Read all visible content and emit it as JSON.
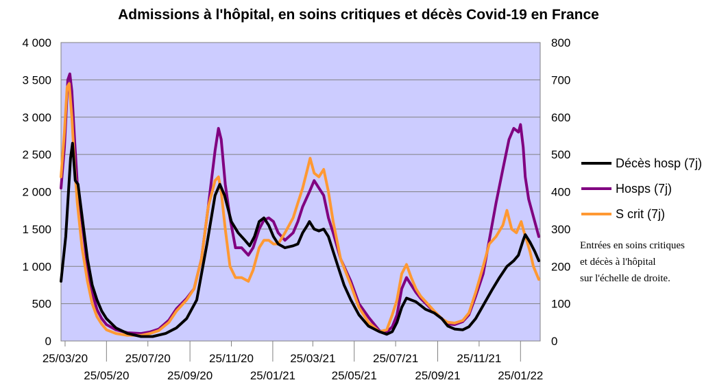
{
  "chart_data": {
    "type": "line",
    "title": "Admissions à l'hôpital, en soins critiques et décès Covid-19 en France",
    "colors": {
      "plot_bg": "#ccccff",
      "deces": "#000000",
      "hosps": "#800080",
      "scrit": "#ff9933"
    },
    "x_ticks_upper": [
      "25/03/20",
      "25/07/20",
      "25/11/20",
      "25/03/21",
      "25/07/21",
      "25/11/21"
    ],
    "x_ticks_lower": [
      "25/05/20",
      "25/09/20",
      "25/01/21",
      "25/05/21",
      "25/09/21",
      "25/01/22"
    ],
    "x_range": [
      "2020-03-19",
      "2022-02-23"
    ],
    "y_left": {
      "ticks": [
        "0",
        "500",
        "1 000",
        "1 500",
        "2 000",
        "2 500",
        "3 000",
        "3 500",
        "4 000"
      ],
      "range": [
        0,
        4000
      ]
    },
    "y_right": {
      "ticks": [
        "0",
        "100",
        "200",
        "300",
        "400",
        "500",
        "600",
        "700",
        "800"
      ],
      "range": [
        0,
        800
      ]
    },
    "grid": "horizontal",
    "legend_position": "right",
    "note_lines": [
      "Entrées en soins critiques",
      "et décès à l'hôpital",
      "sur l'échelle de droite."
    ],
    "series": [
      {
        "name": "Décès hosp (7j)",
        "key": "deces",
        "axis": "right",
        "points": [
          [
            "2020-03-19",
            160
          ],
          [
            "2020-03-26",
            280
          ],
          [
            "2020-04-02",
            490
          ],
          [
            "2020-04-05",
            530
          ],
          [
            "2020-04-09",
            430
          ],
          [
            "2020-04-13",
            420
          ],
          [
            "2020-04-20",
            320
          ],
          [
            "2020-04-27",
            220
          ],
          [
            "2020-05-04",
            150
          ],
          [
            "2020-05-11",
            110
          ],
          [
            "2020-05-18",
            80
          ],
          [
            "2020-05-25",
            60
          ],
          [
            "2020-06-08",
            35
          ],
          [
            "2020-06-25",
            20
          ],
          [
            "2020-07-15",
            12
          ],
          [
            "2020-08-01",
            12
          ],
          [
            "2020-08-20",
            20
          ],
          [
            "2020-09-05",
            35
          ],
          [
            "2020-09-20",
            60
          ],
          [
            "2020-10-05",
            110
          ],
          [
            "2020-10-20",
            260
          ],
          [
            "2020-11-01",
            390
          ],
          [
            "2020-11-08",
            420
          ],
          [
            "2020-11-15",
            390
          ],
          [
            "2020-11-25",
            320
          ],
          [
            "2020-12-05",
            290
          ],
          [
            "2020-12-15",
            270
          ],
          [
            "2020-12-22",
            255
          ],
          [
            "2020-12-29",
            280
          ],
          [
            "2021-01-05",
            320
          ],
          [
            "2021-01-12",
            330
          ],
          [
            "2021-01-19",
            310
          ],
          [
            "2021-01-26",
            280
          ],
          [
            "2021-02-02",
            260
          ],
          [
            "2021-02-12",
            250
          ],
          [
            "2021-02-24",
            255
          ],
          [
            "2021-03-03",
            260
          ],
          [
            "2021-03-10",
            290
          ],
          [
            "2021-03-17",
            310
          ],
          [
            "2021-03-20",
            320
          ],
          [
            "2021-03-27",
            300
          ],
          [
            "2021-04-03",
            295
          ],
          [
            "2021-04-10",
            300
          ],
          [
            "2021-04-17",
            280
          ],
          [
            "2021-04-24",
            240
          ],
          [
            "2021-05-01",
            200
          ],
          [
            "2021-05-10",
            150
          ],
          [
            "2021-05-20",
            110
          ],
          [
            "2021-06-01",
            70
          ],
          [
            "2021-06-15",
            40
          ],
          [
            "2021-07-01",
            25
          ],
          [
            "2021-07-12",
            18
          ],
          [
            "2021-07-20",
            25
          ],
          [
            "2021-07-27",
            50
          ],
          [
            "2021-08-03",
            90
          ],
          [
            "2021-08-10",
            115
          ],
          [
            "2021-08-17",
            110
          ],
          [
            "2021-08-24",
            105
          ],
          [
            "2021-08-31",
            95
          ],
          [
            "2021-09-07",
            85
          ],
          [
            "2021-09-20",
            75
          ],
          [
            "2021-10-01",
            60
          ],
          [
            "2021-10-10",
            40
          ],
          [
            "2021-10-20",
            32
          ],
          [
            "2021-11-01",
            30
          ],
          [
            "2021-11-10",
            38
          ],
          [
            "2021-11-20",
            60
          ],
          [
            "2021-12-01",
            95
          ],
          [
            "2021-12-15",
            140
          ],
          [
            "2021-12-25",
            170
          ],
          [
            "2022-01-05",
            200
          ],
          [
            "2022-01-15",
            215
          ],
          [
            "2022-01-22",
            230
          ],
          [
            "2022-01-29",
            270
          ],
          [
            "2022-02-01",
            285
          ],
          [
            "2022-02-08",
            265
          ],
          [
            "2022-02-15",
            240
          ],
          [
            "2022-02-21",
            215
          ]
        ]
      },
      {
        "name": "Hosps (7j)",
        "key": "hosps",
        "axis": "left",
        "points": [
          [
            "2020-03-19",
            2050
          ],
          [
            "2020-03-24",
            2600
          ],
          [
            "2020-03-29",
            3500
          ],
          [
            "2020-04-01",
            3580
          ],
          [
            "2020-04-04",
            3350
          ],
          [
            "2020-04-08",
            2700
          ],
          [
            "2020-04-12",
            2100
          ],
          [
            "2020-04-19",
            1600
          ],
          [
            "2020-04-27",
            1000
          ],
          [
            "2020-05-04",
            650
          ],
          [
            "2020-05-11",
            420
          ],
          [
            "2020-05-18",
            300
          ],
          [
            "2020-05-25",
            220
          ],
          [
            "2020-06-08",
            150
          ],
          [
            "2020-06-25",
            110
          ],
          [
            "2020-07-15",
            100
          ],
          [
            "2020-07-28",
            120
          ],
          [
            "2020-08-10",
            160
          ],
          [
            "2020-08-25",
            280
          ],
          [
            "2020-09-05",
            430
          ],
          [
            "2020-09-20",
            570
          ],
          [
            "2020-10-01",
            700
          ],
          [
            "2020-10-12",
            1100
          ],
          [
            "2020-10-22",
            1800
          ],
          [
            "2020-11-01",
            2550
          ],
          [
            "2020-11-06",
            2850
          ],
          [
            "2020-11-10",
            2700
          ],
          [
            "2020-11-16",
            2100
          ],
          [
            "2020-11-23",
            1650
          ],
          [
            "2020-12-01",
            1250
          ],
          [
            "2020-12-10",
            1250
          ],
          [
            "2020-12-20",
            1150
          ],
          [
            "2020-12-27",
            1250
          ],
          [
            "2021-01-05",
            1500
          ],
          [
            "2021-01-12",
            1620
          ],
          [
            "2021-01-19",
            1650
          ],
          [
            "2021-01-26",
            1600
          ],
          [
            "2021-02-02",
            1450
          ],
          [
            "2021-02-12",
            1350
          ],
          [
            "2021-02-24",
            1450
          ],
          [
            "2021-03-03",
            1600
          ],
          [
            "2021-03-10",
            1800
          ],
          [
            "2021-03-20",
            2000
          ],
          [
            "2021-03-27",
            2150
          ],
          [
            "2021-04-03",
            2050
          ],
          [
            "2021-04-10",
            1950
          ],
          [
            "2021-04-17",
            1650
          ],
          [
            "2021-04-24",
            1450
          ],
          [
            "2021-05-05",
            1100
          ],
          [
            "2021-05-20",
            800
          ],
          [
            "2021-06-01",
            500
          ],
          [
            "2021-06-15",
            320
          ],
          [
            "2021-07-01",
            140
          ],
          [
            "2021-07-12",
            120
          ],
          [
            "2021-07-20",
            190
          ],
          [
            "2021-07-27",
            350
          ],
          [
            "2021-08-03",
            700
          ],
          [
            "2021-08-10",
            850
          ],
          [
            "2021-08-17",
            750
          ],
          [
            "2021-08-24",
            650
          ],
          [
            "2021-08-31",
            570
          ],
          [
            "2021-09-10",
            480
          ],
          [
            "2021-09-20",
            390
          ],
          [
            "2021-10-01",
            300
          ],
          [
            "2021-10-10",
            230
          ],
          [
            "2021-10-20",
            220
          ],
          [
            "2021-11-01",
            260
          ],
          [
            "2021-11-10",
            350
          ],
          [
            "2021-11-20",
            600
          ],
          [
            "2021-12-01",
            900
          ],
          [
            "2021-12-10",
            1350
          ],
          [
            "2021-12-20",
            1850
          ],
          [
            "2021-12-30",
            2300
          ],
          [
            "2022-01-08",
            2700
          ],
          [
            "2022-01-15",
            2850
          ],
          [
            "2022-01-22",
            2800
          ],
          [
            "2022-01-25",
            2900
          ],
          [
            "2022-01-29",
            2600
          ],
          [
            "2022-02-01",
            2200
          ],
          [
            "2022-02-06",
            1900
          ],
          [
            "2022-02-12",
            1700
          ],
          [
            "2022-02-21",
            1400
          ]
        ]
      },
      {
        "name": "S crit (7j)",
        "key": "scrit",
        "axis": "right",
        "points": [
          [
            "2020-03-19",
            440
          ],
          [
            "2020-03-24",
            560
          ],
          [
            "2020-03-28",
            680
          ],
          [
            "2020-03-31",
            690
          ],
          [
            "2020-04-04",
            600
          ],
          [
            "2020-04-08",
            470
          ],
          [
            "2020-04-12",
            370
          ],
          [
            "2020-04-19",
            250
          ],
          [
            "2020-04-27",
            160
          ],
          [
            "2020-05-04",
            100
          ],
          [
            "2020-05-11",
            65
          ],
          [
            "2020-05-18",
            45
          ],
          [
            "2020-05-25",
            30
          ],
          [
            "2020-06-08",
            20
          ],
          [
            "2020-06-25",
            15
          ],
          [
            "2020-07-15",
            15
          ],
          [
            "2020-07-28",
            20
          ],
          [
            "2020-08-10",
            28
          ],
          [
            "2020-08-25",
            50
          ],
          [
            "2020-09-05",
            80
          ],
          [
            "2020-09-20",
            110
          ],
          [
            "2020-10-01",
            140
          ],
          [
            "2020-10-12",
            220
          ],
          [
            "2020-10-22",
            360
          ],
          [
            "2020-11-01",
            430
          ],
          [
            "2020-11-06",
            440
          ],
          [
            "2020-11-10",
            400
          ],
          [
            "2020-11-16",
            300
          ],
          [
            "2020-11-23",
            200
          ],
          [
            "2020-12-01",
            170
          ],
          [
            "2020-12-10",
            170
          ],
          [
            "2020-12-20",
            160
          ],
          [
            "2020-12-27",
            190
          ],
          [
            "2021-01-05",
            250
          ],
          [
            "2021-01-12",
            270
          ],
          [
            "2021-01-19",
            270
          ],
          [
            "2021-01-26",
            260
          ],
          [
            "2021-02-02",
            260
          ],
          [
            "2021-02-12",
            290
          ],
          [
            "2021-02-24",
            330
          ],
          [
            "2021-03-03",
            370
          ],
          [
            "2021-03-10",
            410
          ],
          [
            "2021-03-17",
            460
          ],
          [
            "2021-03-21",
            490
          ],
          [
            "2021-03-27",
            450
          ],
          [
            "2021-04-03",
            440
          ],
          [
            "2021-04-10",
            460
          ],
          [
            "2021-04-17",
            400
          ],
          [
            "2021-04-24",
            320
          ],
          [
            "2021-05-05",
            220
          ],
          [
            "2021-05-20",
            150
          ],
          [
            "2021-06-01",
            90
          ],
          [
            "2021-06-15",
            50
          ],
          [
            "2021-07-01",
            25
          ],
          [
            "2021-07-12",
            30
          ],
          [
            "2021-07-20",
            70
          ],
          [
            "2021-07-27",
            110
          ],
          [
            "2021-08-03",
            180
          ],
          [
            "2021-08-10",
            205
          ],
          [
            "2021-08-17",
            170
          ],
          [
            "2021-08-24",
            140
          ],
          [
            "2021-08-31",
            120
          ],
          [
            "2021-09-10",
            100
          ],
          [
            "2021-09-20",
            80
          ],
          [
            "2021-10-01",
            60
          ],
          [
            "2021-10-10",
            50
          ],
          [
            "2021-10-20",
            48
          ],
          [
            "2021-11-01",
            55
          ],
          [
            "2021-11-10",
            75
          ],
          [
            "2021-11-20",
            130
          ],
          [
            "2021-12-01",
            200
          ],
          [
            "2021-12-10",
            260
          ],
          [
            "2021-12-20",
            280
          ],
          [
            "2021-12-30",
            310
          ],
          [
            "2022-01-05",
            350
          ],
          [
            "2022-01-12",
            300
          ],
          [
            "2022-01-19",
            290
          ],
          [
            "2022-01-26",
            320
          ],
          [
            "2022-01-29",
            300
          ],
          [
            "2022-02-03",
            270
          ],
          [
            "2022-02-08",
            240
          ],
          [
            "2022-02-13",
            200
          ],
          [
            "2022-02-21",
            165
          ]
        ]
      }
    ]
  }
}
